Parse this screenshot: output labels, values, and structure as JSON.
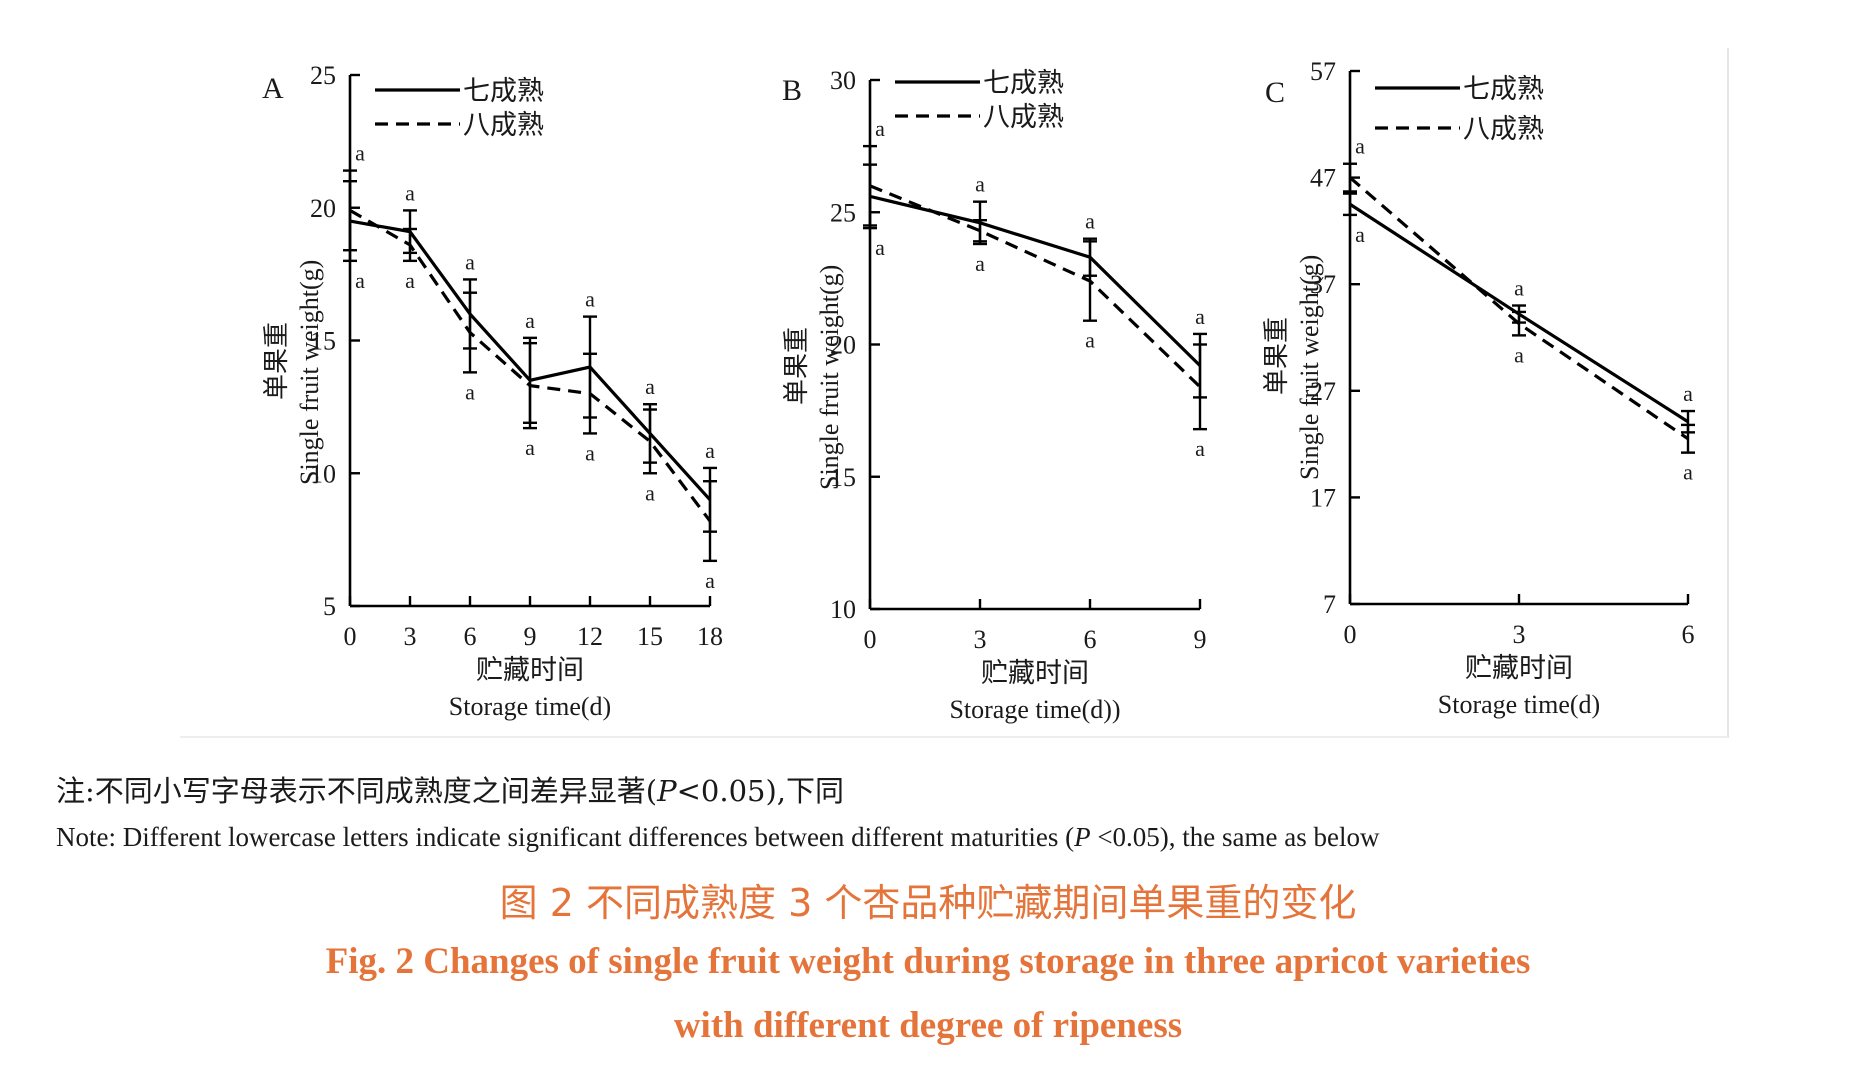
{
  "chart_data": [
    {
      "type": "line",
      "panel_label": "A",
      "x": [
        0,
        3,
        6,
        9,
        12,
        15,
        18
      ],
      "xticks": [
        "0",
        "3",
        "6",
        "9",
        "12",
        "15",
        "18"
      ],
      "yticks": [
        "5",
        "10",
        "15",
        "20",
        "25"
      ],
      "ylim": [
        5,
        25
      ],
      "xlabel_zh": "贮藏时间",
      "xlabel_en": "Storage time(d)",
      "ylabel_zh": "单果重",
      "ylabel_en": "Single fruit weight(g)",
      "legend_position": "top",
      "series": [
        {
          "name": "七成熟",
          "style": "solid",
          "values": [
            19.5,
            19.1,
            16.0,
            13.5,
            14.0,
            11.5,
            9.0
          ],
          "errors": [
            1.5,
            0.8,
            1.3,
            1.6,
            1.9,
            1.1,
            1.2
          ],
          "letters": [
            "a",
            "a",
            "a",
            "a",
            "a",
            "a",
            "a"
          ]
        },
        {
          "name": "八成熟",
          "style": "dashed",
          "values": [
            19.9,
            18.6,
            15.3,
            13.3,
            13.0,
            11.2,
            8.2
          ],
          "errors": [
            1.5,
            0.6,
            1.5,
            1.6,
            1.5,
            1.2,
            1.5
          ],
          "letters": [
            "a",
            "a",
            "a",
            "a",
            "a",
            "a",
            "a"
          ]
        }
      ]
    },
    {
      "type": "line",
      "panel_label": "B",
      "x": [
        0,
        3,
        6,
        9
      ],
      "xticks": [
        "0",
        "3",
        "6",
        "9"
      ],
      "yticks": [
        "10",
        "15",
        "20",
        "25",
        "30"
      ],
      "ylim": [
        10,
        30
      ],
      "xlabel_zh": "贮藏时间",
      "xlabel_en": "Storage time(d))",
      "ylabel_zh": "单果重",
      "ylabel_en": "Single fruit weight(g)",
      "legend_position": "top",
      "series": [
        {
          "name": "七成熟",
          "style": "solid",
          "values": [
            25.6,
            24.6,
            23.3,
            19.2
          ],
          "errors": [
            1.2,
            0.8,
            0.7,
            1.2
          ],
          "letters": [
            "a",
            "a",
            "a",
            "a"
          ]
        },
        {
          "name": "八成熟",
          "style": "dashed",
          "values": [
            26.0,
            24.3,
            22.4,
            18.4
          ],
          "errors": [
            1.5,
            0.4,
            1.5,
            1.6
          ],
          "letters": [
            "a",
            "a",
            "a",
            "a"
          ]
        }
      ]
    },
    {
      "type": "line",
      "panel_label": "C",
      "x": [
        0,
        3,
        6
      ],
      "xticks": [
        "0",
        "3",
        "6"
      ],
      "yticks": [
        "7",
        "17",
        "27",
        "37",
        "47",
        "57"
      ],
      "ylim": [
        7,
        57
      ],
      "xlabel_zh": "贮藏时间",
      "xlabel_en": "Storage time(d)",
      "ylabel_zh": "单果重",
      "ylabel_en": "Single fruit weight(g)",
      "legend_position": "top",
      "series": [
        {
          "name": "七成熟",
          "style": "solid",
          "values": [
            44.5,
            34.2,
            24.1
          ],
          "errors": [
            1.0,
            0.8,
            1.0
          ],
          "letters": [
            "a",
            "a",
            "a"
          ]
        },
        {
          "name": "八成熟",
          "style": "dashed",
          "values": [
            47.0,
            33.3,
            22.5
          ],
          "errors": [
            1.3,
            1.1,
            1.3
          ],
          "letters": [
            "a",
            "a",
            "a"
          ]
        }
      ]
    }
  ],
  "note": {
    "zh_prefix": "注:不同小写字母表示不同成熟度之间差异显著(",
    "zh_p": "P",
    "zh_suffix": "<0.05),下同",
    "en_prefix": "Note: Different lowercase letters indicate significant differences between different maturities (",
    "en_p": "P",
    "en_suffix": " <0.05), the same as below"
  },
  "caption": {
    "zh": "图 2    不同成熟度 3 个杏品种贮藏期间单果重的变化",
    "en_line1": "Fig. 2    Changes of single fruit weight during storage in three apricot varieties",
    "en_line2": "with different degree of ripeness"
  }
}
